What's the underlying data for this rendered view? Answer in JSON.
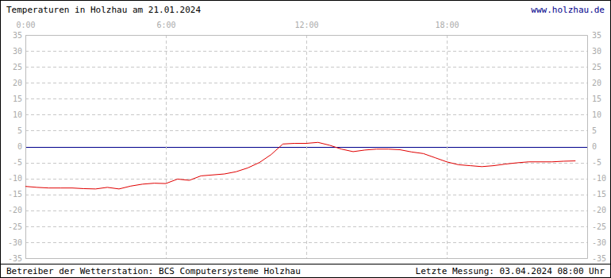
{
  "chart_data": {
    "type": "line",
    "title": "Temperaturen in Holzhau am 21.01.2024",
    "header_right": "www.holzhau.de",
    "footer_left": "Betreiber der Wetterstation: BCS Computersysteme Holzhau",
    "footer_right": "Letzte Messung: 03.04.2024 08:00 Uhr",
    "x": [
      0,
      0.5,
      1,
      1.5,
      2,
      2.5,
      3,
      3.5,
      4,
      4.5,
      5,
      5.5,
      6,
      6.5,
      7,
      7.5,
      8,
      8.5,
      9,
      9.5,
      10,
      10.5,
      11,
      11.5,
      12,
      12.5,
      13,
      13.5,
      14,
      14.5,
      15,
      15.5,
      16,
      16.5,
      17,
      17.5,
      18,
      18.5,
      19,
      19.5,
      20,
      20.5,
      21,
      21.5,
      22,
      22.5,
      23,
      23.5
    ],
    "series": [
      {
        "color": "#e00000",
        "values": [
          -12.5,
          -12.8,
          -13,
          -13,
          -13,
          -13.2,
          -13.3,
          -12.8,
          -13.3,
          -12.4,
          -11.8,
          -11.5,
          -11.6,
          -10.2,
          -10.6,
          -9.2,
          -8.9,
          -8.6,
          -7.9,
          -6.7,
          -5,
          -2.5,
          0.8,
          1,
          1,
          1.3,
          0.4,
          -0.8,
          -1.6,
          -1.1,
          -0.8,
          -0.8,
          -1,
          -1.7,
          -2.2,
          -3.5,
          -4.8,
          -5.7,
          -6,
          -6.3,
          -6,
          -5.5,
          -5.1,
          -4.8,
          -4.8,
          -4.8,
          -4.6,
          -4.5
        ]
      }
    ],
    "xlim": [
      0,
      24
    ],
    "xticks": [
      {
        "value": 0,
        "label": "0:00"
      },
      {
        "value": 6,
        "label": "6:00"
      },
      {
        "value": 12,
        "label": "12:00"
      },
      {
        "value": 18,
        "label": "18:00"
      }
    ],
    "ylim": [
      -35,
      35
    ],
    "yticks": [
      -35,
      -30,
      -25,
      -20,
      -15,
      -10,
      -5,
      0,
      5,
      10,
      15,
      20,
      25,
      30,
      35
    ],
    "grid": true,
    "line_style": "solid"
  }
}
